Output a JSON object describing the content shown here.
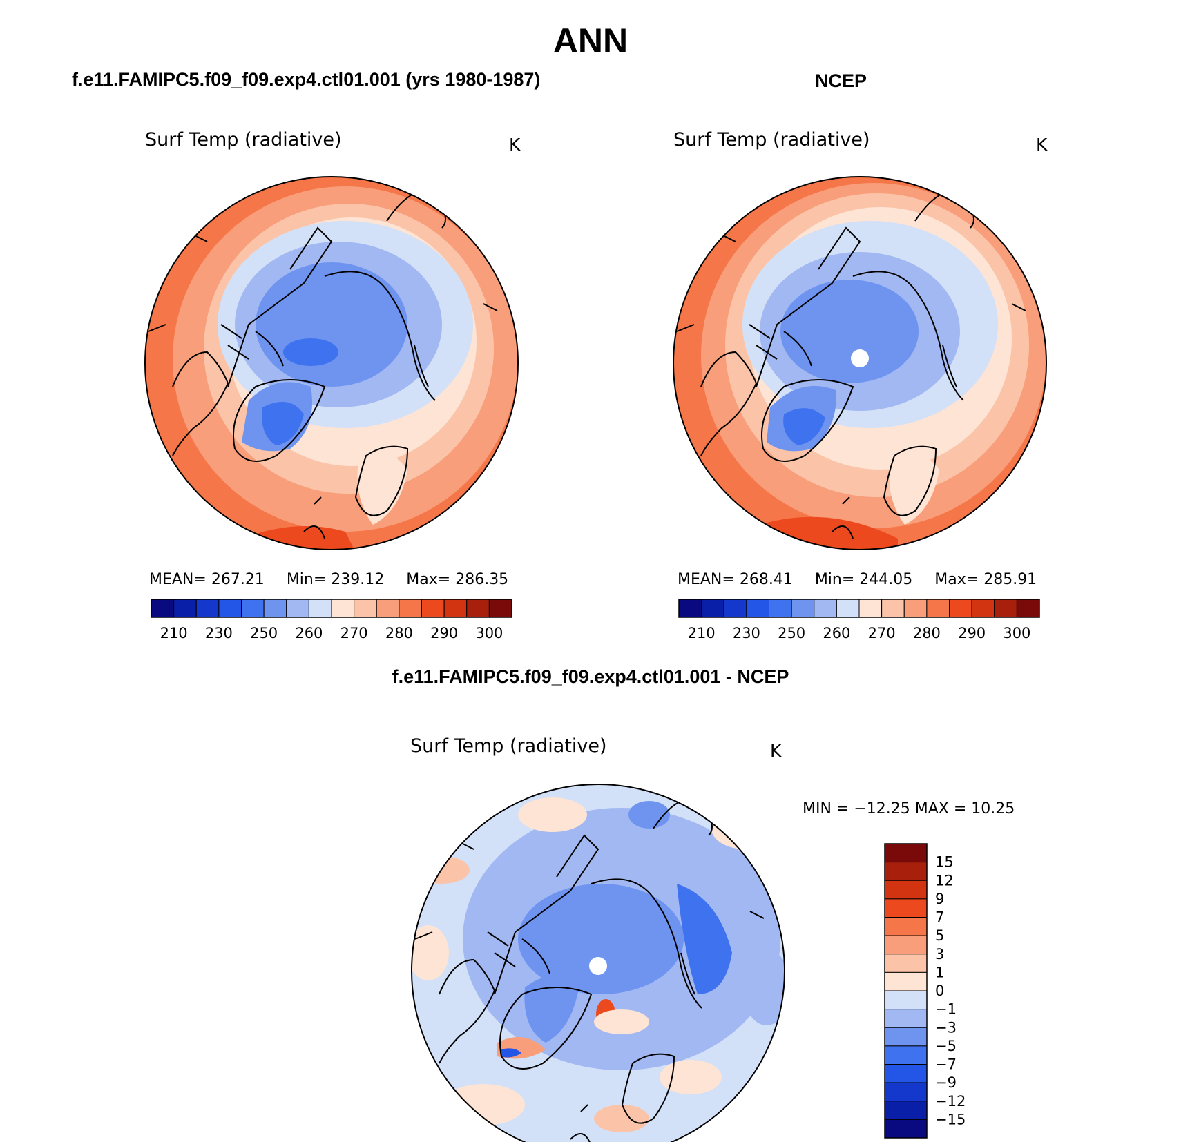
{
  "title": "ANN",
  "panels": {
    "left": {
      "title": "f.e11.FAMIPC5.f09_f09.exp4.ctl01.001 (yrs 1980-1987)",
      "variable": "Surf Temp (radiative)",
      "unit": "K",
      "mean_label": "MEAN=",
      "mean": "267.21",
      "min_label": "Min=",
      "min": "239.12",
      "max_label": "Max=",
      "max": "286.35"
    },
    "right": {
      "title": "NCEP",
      "variable": "Surf Temp (radiative)",
      "unit": "K",
      "mean_label": "MEAN=",
      "mean": "268.41",
      "min_label": "Min=",
      "min": "244.05",
      "max_label": "Max=",
      "max": "285.91"
    },
    "diff": {
      "title": "f.e11.FAMIPC5.f09_f09.exp4.ctl01.001 - NCEP",
      "variable": "Surf Temp (radiative)",
      "unit": "K",
      "minmax_label": "MIN = −12.25 MAX =   10.25"
    }
  },
  "colorbar_abs": {
    "ticks": [
      "210",
      "230",
      "250",
      "260",
      "270",
      "280",
      "290",
      "300"
    ],
    "colors": [
      "#0a0a80",
      "#0a1fa8",
      "#1438cc",
      "#2355e6",
      "#3f72ee",
      "#6e94f0",
      "#a2b8f2",
      "#d2e0f8",
      "#fde4d4",
      "#fbc4a8",
      "#f89e7a",
      "#f57648",
      "#ec4a1e",
      "#d23310",
      "#a8200c",
      "#7a0a0a"
    ]
  },
  "colorbar_diff": {
    "ticks": [
      "15",
      "12",
      "9",
      "7",
      "5",
      "3",
      "1",
      "0",
      "−1",
      "−3",
      "−5",
      "−7",
      "−9",
      "−12",
      "−15"
    ],
    "colors": [
      "#7a0a0a",
      "#a8200c",
      "#d23310",
      "#ec4a1e",
      "#f57648",
      "#f89e7a",
      "#fbc4a8",
      "#fde4d4",
      "#d2e0f8",
      "#a2b8f2",
      "#6e94f0",
      "#3f72ee",
      "#2355e6",
      "#1438cc",
      "#0a1fa8",
      "#0a0a80"
    ]
  }
}
